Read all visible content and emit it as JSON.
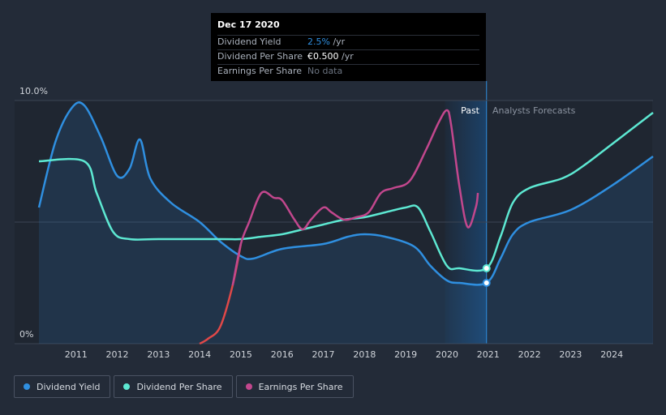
{
  "tooltip": {
    "date": "Dec 17 2020",
    "rows": [
      {
        "label": "Dividend Yield",
        "value": "2.5%",
        "unit": " /yr"
      },
      {
        "label": "Dividend Per Share",
        "value": "€0.500",
        "unit": " /yr"
      },
      {
        "label": "Earnings Per Share",
        "value": "No data",
        "unit": ""
      }
    ]
  },
  "labels": {
    "past": "Past",
    "forecast": "Analysts Forecasts"
  },
  "colors": {
    "background": "#232b38",
    "dividend_yield": "#2f8fe0",
    "dividend_per_share": "#5de8d2",
    "eps_positive": "#c2478d",
    "eps_negative": "#e04848",
    "past_band": "#1b4a7a"
  },
  "legend": [
    {
      "label": "Dividend Yield",
      "color": "#2f8fe0"
    },
    {
      "label": "Dividend Per Share",
      "color": "#5de8d2"
    },
    {
      "label": "Earnings Per Share",
      "color": "#c2478d"
    }
  ],
  "chart_data": {
    "type": "line",
    "ylim": [
      0,
      10
    ],
    "xlim": [
      2010.1,
      2025.0
    ],
    "y_ticks": [
      {
        "value": 10,
        "label": "10.0%"
      },
      {
        "value": 0,
        "label": "0%"
      }
    ],
    "x_ticks": [
      "2011",
      "2012",
      "2013",
      "2014",
      "2015",
      "2016",
      "2017",
      "2018",
      "2019",
      "2020",
      "2021",
      "2022",
      "2023",
      "2024"
    ],
    "grid": true,
    "past_region": [
      2019.95,
      2020.96
    ],
    "highlight_x": 2020.96,
    "series": [
      {
        "name": "Dividend Yield",
        "area": true,
        "marker_at": [
          2020.96,
          2.5
        ],
        "points": [
          [
            2010.1,
            5.6
          ],
          [
            2010.5,
            8.3
          ],
          [
            2010.9,
            9.7
          ],
          [
            2011.2,
            9.8
          ],
          [
            2011.6,
            8.5
          ],
          [
            2012.0,
            6.9
          ],
          [
            2012.3,
            7.2
          ],
          [
            2012.55,
            8.4
          ],
          [
            2012.8,
            6.8
          ],
          [
            2013.3,
            5.8
          ],
          [
            2014.0,
            5.0
          ],
          [
            2014.5,
            4.2
          ],
          [
            2015.0,
            3.6
          ],
          [
            2015.3,
            3.5
          ],
          [
            2016.0,
            3.9
          ],
          [
            2017.0,
            4.1
          ],
          [
            2017.6,
            4.4
          ],
          [
            2018.0,
            4.5
          ],
          [
            2018.5,
            4.4
          ],
          [
            2019.2,
            4.0
          ],
          [
            2019.6,
            3.2
          ],
          [
            2020.0,
            2.6
          ],
          [
            2020.3,
            2.5
          ],
          [
            2020.96,
            2.5
          ],
          [
            2021.3,
            3.5
          ],
          [
            2021.6,
            4.5
          ],
          [
            2022.0,
            5.0
          ],
          [
            2023.0,
            5.5
          ],
          [
            2024.0,
            6.5
          ],
          [
            2025.0,
            7.7
          ]
        ]
      },
      {
        "name": "Dividend Per Share",
        "area": false,
        "marker_at": [
          2020.96,
          3.1
        ],
        "points": [
          [
            2010.1,
            7.5
          ],
          [
            2011.2,
            7.5
          ],
          [
            2011.5,
            6.2
          ],
          [
            2011.9,
            4.6
          ],
          [
            2012.3,
            4.3
          ],
          [
            2013.0,
            4.3
          ],
          [
            2014.5,
            4.3
          ],
          [
            2015.0,
            4.3
          ],
          [
            2015.5,
            4.4
          ],
          [
            2016.0,
            4.5
          ],
          [
            2016.5,
            4.7
          ],
          [
            2017.0,
            4.9
          ],
          [
            2017.5,
            5.1
          ],
          [
            2018.0,
            5.2
          ],
          [
            2018.5,
            5.4
          ],
          [
            2019.0,
            5.6
          ],
          [
            2019.3,
            5.6
          ],
          [
            2019.6,
            4.6
          ],
          [
            2020.0,
            3.2
          ],
          [
            2020.3,
            3.1
          ],
          [
            2020.96,
            3.1
          ],
          [
            2021.3,
            4.4
          ],
          [
            2021.6,
            5.8
          ],
          [
            2022.0,
            6.4
          ],
          [
            2022.8,
            6.8
          ],
          [
            2023.3,
            7.3
          ],
          [
            2024.0,
            8.2
          ],
          [
            2025.0,
            9.5
          ]
        ]
      },
      {
        "name": "Earnings Per Share",
        "area": false,
        "points": [
          [
            2014.0,
            0.0
          ],
          [
            2014.2,
            0.2
          ],
          [
            2014.5,
            0.7
          ],
          [
            2014.8,
            2.4
          ],
          [
            2015.0,
            4.1
          ],
          [
            2015.2,
            5.0
          ],
          [
            2015.5,
            6.2
          ],
          [
            2015.8,
            6.0
          ],
          [
            2016.0,
            5.9
          ],
          [
            2016.3,
            5.1
          ],
          [
            2016.5,
            4.7
          ],
          [
            2016.7,
            5.1
          ],
          [
            2017.0,
            5.6
          ],
          [
            2017.2,
            5.4
          ],
          [
            2017.5,
            5.1
          ],
          [
            2017.8,
            5.2
          ],
          [
            2018.1,
            5.4
          ],
          [
            2018.4,
            6.2
          ],
          [
            2018.7,
            6.4
          ],
          [
            2019.1,
            6.7
          ],
          [
            2019.5,
            8.0
          ],
          [
            2019.8,
            9.1
          ],
          [
            2020.0,
            9.6
          ],
          [
            2020.1,
            9.0
          ],
          [
            2020.3,
            6.5
          ],
          [
            2020.5,
            4.8
          ],
          [
            2020.7,
            5.6
          ],
          [
            2020.75,
            6.2
          ]
        ]
      }
    ]
  }
}
